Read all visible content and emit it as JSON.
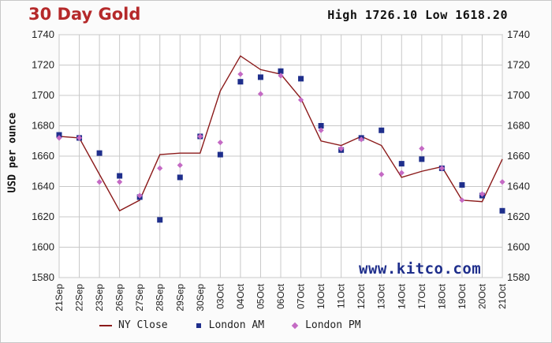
{
  "title": "30 Day Gold",
  "high_low_text": "High 1726.10 Low 1618.20",
  "ylabel": "USD per ounce",
  "watermark": "www.kitco.com",
  "legend": {
    "ny_close": "NY Close",
    "london_am": "London AM",
    "london_pm": "London PM"
  },
  "colors": {
    "title": "#b5292a",
    "ny_close": "#8b1a1a",
    "london_am": "#1f2f8c",
    "london_pm": "#c46ac4",
    "grid": "#c8c8c8"
  },
  "chart_data": {
    "type": "line",
    "title": "30 Day Gold",
    "ylabel": "USD per ounce",
    "xlabel": "",
    "ylim": [
      1580,
      1740
    ],
    "yticks": [
      1580,
      1600,
      1620,
      1640,
      1660,
      1680,
      1700,
      1720,
      1740
    ],
    "grid": true,
    "legend_position": "bottom",
    "categories": [
      "21Sep",
      "22Sep",
      "23Sep",
      "26Sep",
      "27Sep",
      "28Sep",
      "29Sep",
      "30Sep",
      "03Oct",
      "04Oct",
      "05Oct",
      "06Oct",
      "07Oct",
      "10Oct",
      "11Oct",
      "12Oct",
      "13Oct",
      "14Oct",
      "17Oct",
      "18Oct",
      "19Oct",
      "20Oct",
      "21Oct"
    ],
    "series": [
      {
        "name": "NY Close",
        "style": "line",
        "values": [
          1673,
          1672,
          1648,
          1624,
          1631,
          1661,
          1662,
          1662,
          1703,
          1726,
          1717,
          1714,
          1698,
          1670,
          1667,
          1673,
          1667,
          1646,
          1650,
          1653,
          1631,
          1630,
          1658
        ]
      },
      {
        "name": "London AM",
        "style": "square",
        "values": [
          1674,
          1672,
          1662,
          1647,
          1633,
          1618,
          1646,
          1673,
          1661,
          1709,
          1712,
          1716,
          1711,
          1680,
          1664,
          1672,
          1677,
          1655,
          1658,
          1652,
          1641,
          1634,
          1624
        ]
      },
      {
        "name": "London PM",
        "style": "diamond",
        "values": [
          1672,
          1672,
          1643,
          1643,
          1634,
          1652,
          1654,
          1673,
          1669,
          1714,
          1701,
          1713,
          1697,
          1677,
          1665,
          1671,
          1648,
          1649,
          1665,
          1652,
          1631,
          1635,
          1643
        ]
      }
    ]
  }
}
